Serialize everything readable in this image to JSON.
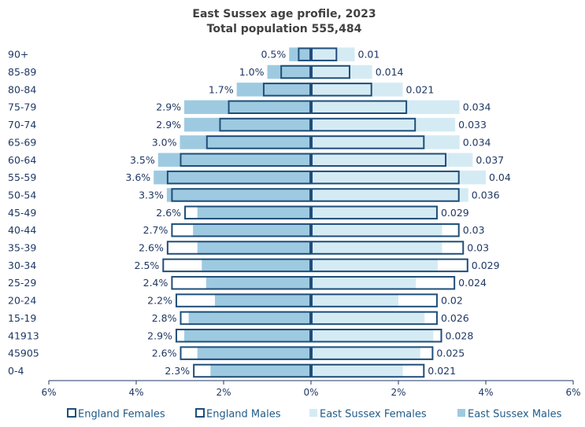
{
  "chart_data": {
    "type": "bar",
    "orientation": "horizontal",
    "layout": "population-pyramid",
    "title": "East Sussex age profile, 2023",
    "subtitle": "Total population 555,484",
    "categories": [
      "90+",
      "85-89",
      "80-84",
      "75-79",
      "70-74",
      "65-69",
      "60-64",
      "55-59",
      "50-54",
      "45-49",
      "40-44",
      "35-39",
      "30-34",
      "25-29",
      "20-24",
      "15-19",
      "41913",
      "45905",
      "0-4"
    ],
    "series": [
      {
        "name": "England Females",
        "side": "right",
        "style": "outline",
        "values": [
          0.6,
          0.9,
          1.4,
          2.2,
          2.4,
          2.6,
          3.1,
          3.4,
          3.4,
          2.9,
          3.4,
          3.5,
          3.6,
          3.3,
          2.9,
          2.9,
          3.0,
          2.8,
          2.6
        ]
      },
      {
        "name": "England Males",
        "side": "left",
        "style": "outline",
        "values": [
          0.3,
          0.7,
          1.1,
          1.9,
          2.1,
          2.4,
          3.0,
          3.3,
          3.2,
          2.9,
          3.2,
          3.3,
          3.4,
          3.2,
          3.1,
          3.0,
          3.1,
          3.0,
          2.7
        ]
      },
      {
        "name": "East Sussex Females",
        "side": "right",
        "style": "fill",
        "values": [
          1.0,
          1.4,
          2.1,
          3.4,
          3.3,
          3.4,
          3.7,
          4.0,
          3.6,
          2.9,
          3.0,
          3.0,
          2.9,
          2.4,
          2.0,
          2.6,
          2.8,
          2.5,
          2.1
        ],
        "labels": [
          "0.01",
          "0.014",
          "0.021",
          "0.034",
          "0.033",
          "0.034",
          "0.037",
          "0.04",
          "0.036",
          "0.029",
          "0.03",
          "0.03",
          "0.029",
          "0.024",
          "0.02",
          "0.026",
          "0.028",
          "0.025",
          "0.021"
        ]
      },
      {
        "name": "East Sussex Males",
        "side": "left",
        "style": "fill",
        "values": [
          0.5,
          1.0,
          1.7,
          2.9,
          2.9,
          3.0,
          3.5,
          3.6,
          3.3,
          2.6,
          2.7,
          2.6,
          2.5,
          2.4,
          2.2,
          2.8,
          2.9,
          2.6,
          2.3
        ],
        "labels": [
          "0.5%",
          "1.0%",
          "1.7%",
          "2.9%",
          "2.9%",
          "3.0%",
          "3.5%",
          "3.6%",
          "3.3%",
          "2.6%",
          "2.7%",
          "2.6%",
          "2.5%",
          "2.4%",
          "2.2%",
          "2.8%",
          "2.9%",
          "2.6%",
          "2.3%"
        ]
      }
    ],
    "x_ticks": [
      "6%",
      "4%",
      "2%",
      "0%",
      "2%",
      "4%",
      "6%"
    ],
    "xlim": [
      -6,
      6
    ],
    "grid": false,
    "legend_position": "bottom",
    "colors": {
      "england_outline": "#1f4e79",
      "east_sussex_females_fill": "#d5ebf4",
      "east_sussex_males_fill": "#9ecae1",
      "text": "#1f3864",
      "title": "#404040",
      "legend_text": "#1f5a8a"
    }
  }
}
